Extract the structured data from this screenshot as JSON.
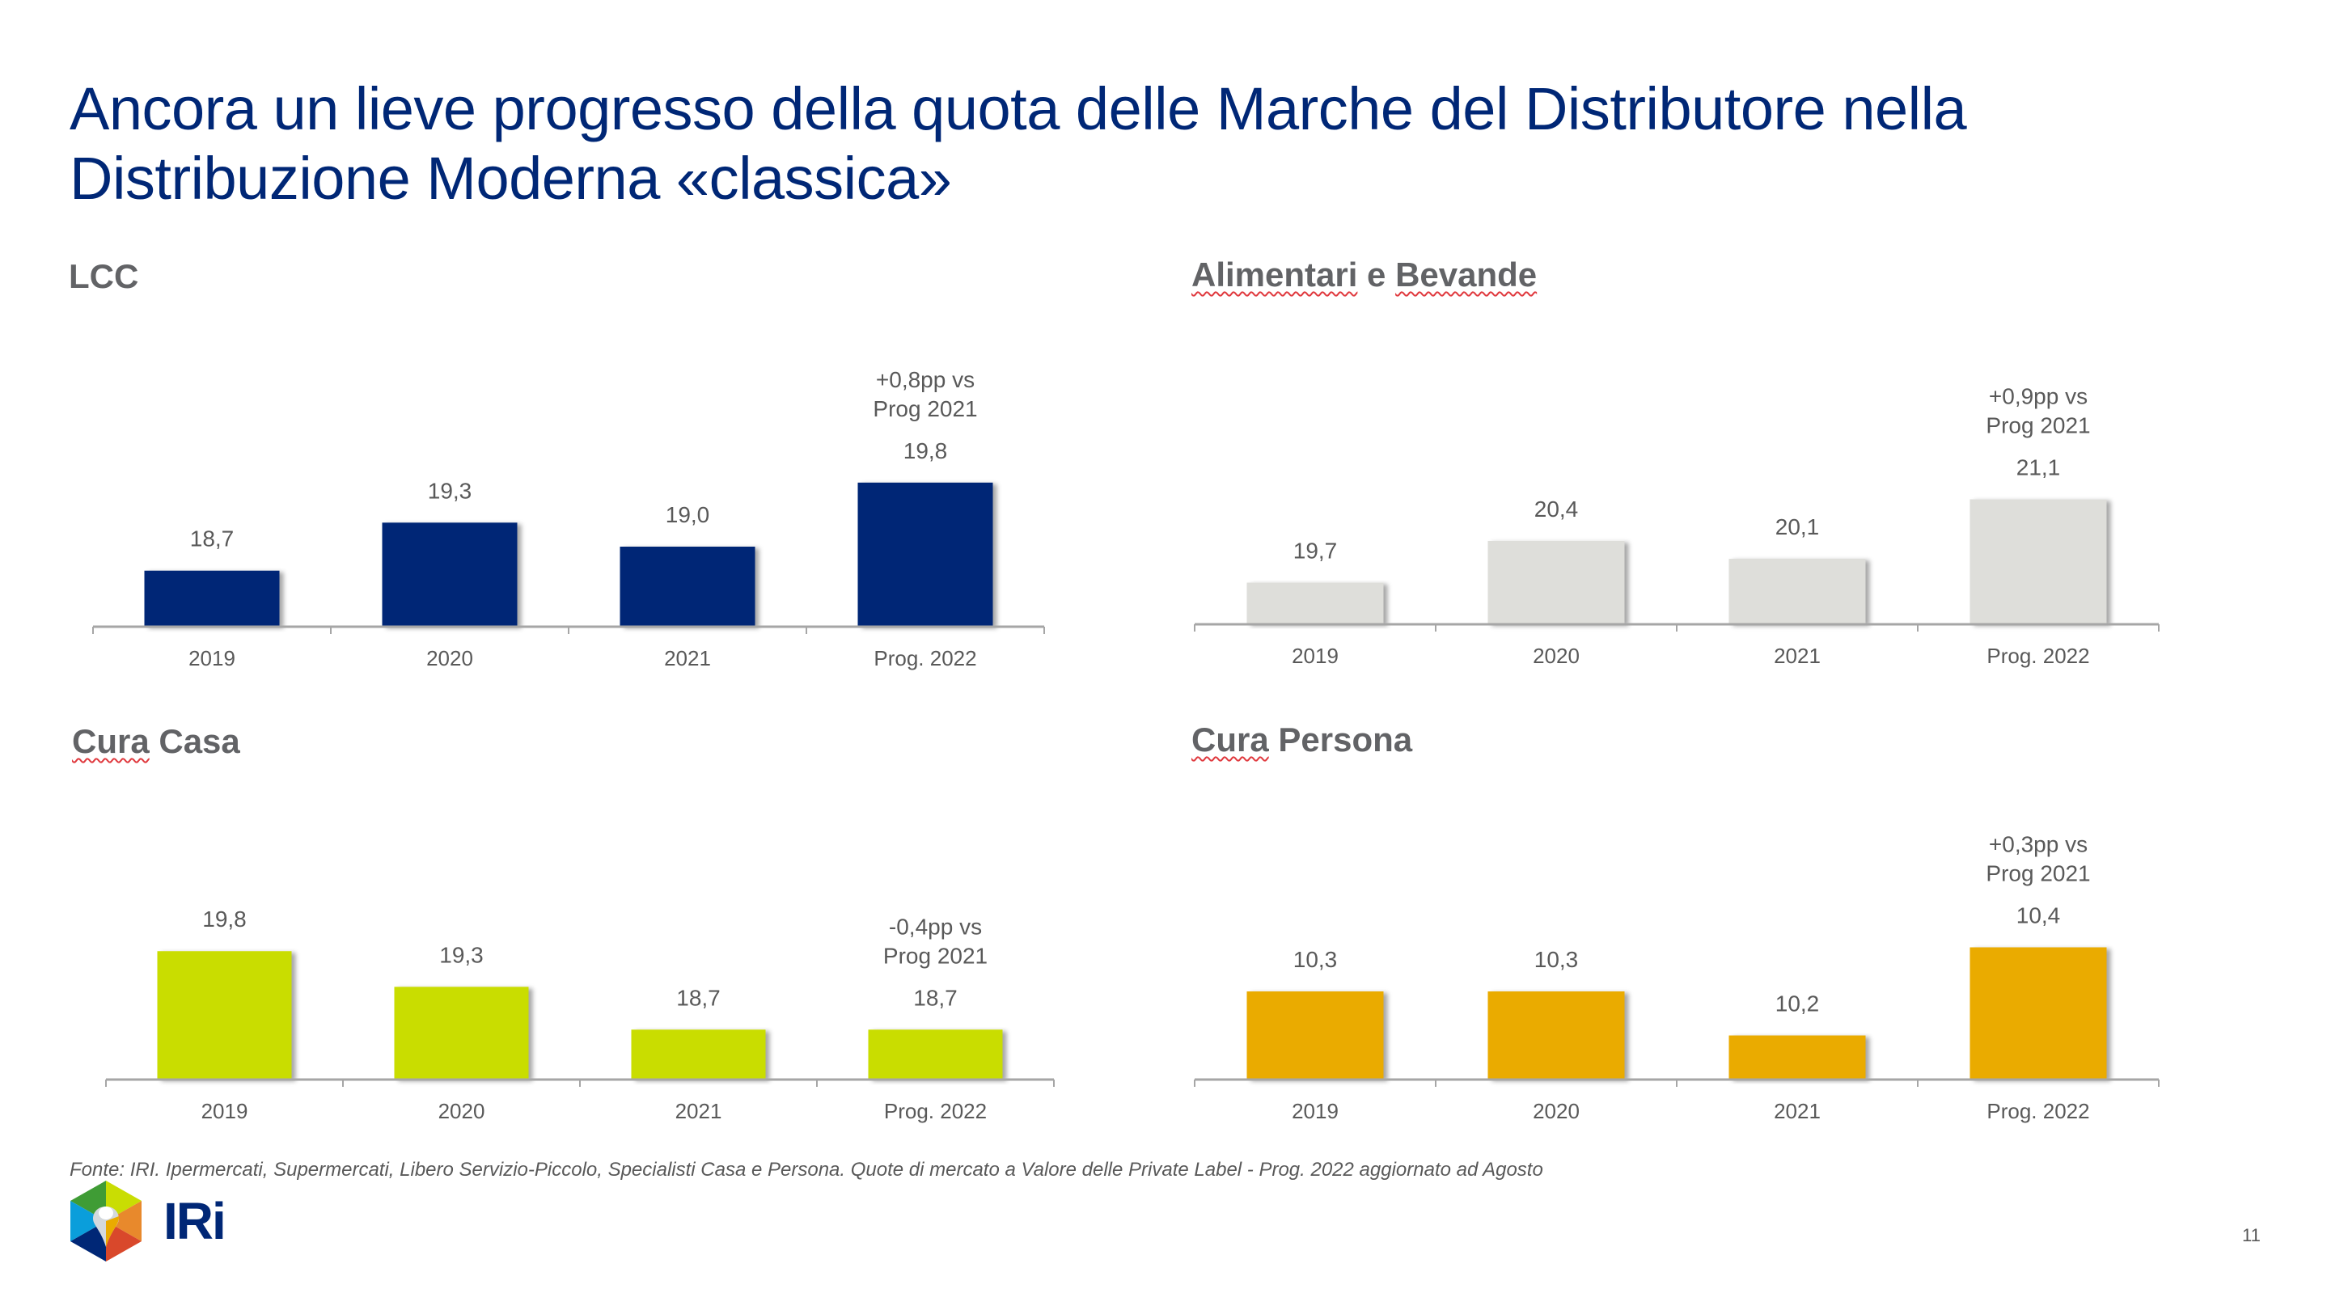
{
  "slide": {
    "title_lines": [
      "Ancora un lieve progresso della quota delle Marche del Distributore nella",
      "Distribuzione Moderna «classica»"
    ],
    "source": "Fonte: IRI. Ipermercati, Supermercati, Libero Servizio-Piccolo, Specialisti Casa e Persona. Quote di mercato a Valore delle Private Label - Prog. 2022 aggiornato ad Agosto",
    "page_number": "11",
    "logo": {
      "text": "IRi",
      "icon": "iri-hexagon-logo-icon",
      "text_color": "#002776"
    }
  },
  "chart_data": [
    {
      "type": "bar",
      "title": "LCC",
      "title_parts": [
        {
          "text": "LCC",
          "spellcheck": false
        }
      ],
      "categories": [
        "2019",
        "2020",
        "2021",
        "Prog. 2022"
      ],
      "values": [
        18.7,
        19.3,
        19.0,
        19.8
      ],
      "value_labels": [
        "18,7",
        "19,3",
        "19,0",
        "19,8"
      ],
      "color": "#002776",
      "annotation": {
        "category_index": 3,
        "lines": [
          "+0,8pp vs",
          "Prog 2021"
        ]
      },
      "xlabel": "",
      "ylabel": "",
      "ylim": [
        18.0,
        19.8
      ],
      "grid": false,
      "legend": "none"
    },
    {
      "type": "bar",
      "title": "Alimentari e Bevande",
      "title_parts": [
        {
          "text": "Alimentari",
          "spellcheck": true
        },
        {
          "text": " e ",
          "spellcheck": false
        },
        {
          "text": "Bevande",
          "spellcheck": true
        }
      ],
      "categories": [
        "2019",
        "2020",
        "2021",
        "Prog. 2022"
      ],
      "values": [
        19.7,
        20.4,
        20.1,
        21.1
      ],
      "value_labels": [
        "19,7",
        "20,4",
        "20,1",
        "21,1"
      ],
      "color": "#dededa",
      "annotation": {
        "category_index": 3,
        "lines": [
          "+0,9pp vs",
          "Prog 2021"
        ]
      },
      "xlabel": "",
      "ylabel": "",
      "ylim": [
        19.0,
        21.1
      ],
      "grid": false,
      "legend": "none"
    },
    {
      "type": "bar",
      "title": "Cura Casa",
      "title_parts": [
        {
          "text": "Cura",
          "spellcheck": true
        },
        {
          "text": " Casa",
          "spellcheck": false
        }
      ],
      "categories": [
        "2019",
        "2020",
        "2021",
        "Prog. 2022"
      ],
      "values": [
        19.8,
        19.3,
        18.7,
        18.7
      ],
      "value_labels": [
        "19,8",
        "19,3",
        "18,7",
        "18,7"
      ],
      "color": "#c9dd03",
      "annotation": {
        "category_index": 3,
        "lines": [
          "-0,4pp vs",
          "Prog 2021"
        ]
      },
      "xlabel": "",
      "ylabel": "",
      "ylim": [
        18.0,
        19.8
      ],
      "grid": false,
      "legend": "none"
    },
    {
      "type": "bar",
      "title": "Cura Persona",
      "title_parts": [
        {
          "text": "Cura",
          "spellcheck": true
        },
        {
          "text": " Persona",
          "spellcheck": false
        }
      ],
      "categories": [
        "2019",
        "2020",
        "2021",
        "Prog. 2022"
      ],
      "values": [
        10.3,
        10.3,
        10.2,
        10.4
      ],
      "value_labels": [
        "10,3",
        "10,3",
        "10,2",
        "10,4"
      ],
      "color": "#eaab00",
      "annotation": {
        "category_index": 3,
        "lines": [
          "+0,3pp vs",
          "Prog 2021"
        ]
      },
      "xlabel": "",
      "ylabel": "",
      "ylim": [
        10.1,
        10.4
      ],
      "grid": false,
      "legend": "none"
    }
  ]
}
